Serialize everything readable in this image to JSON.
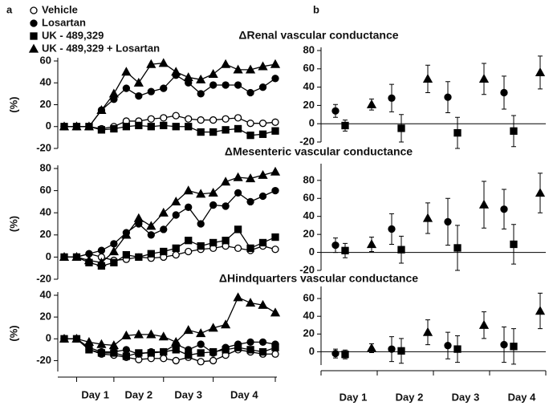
{
  "panel_labels": [
    "a",
    "b"
  ],
  "chart_data": [
    {
      "type": "line",
      "ylabel": "(%)",
      "categories": [
        null,
        null,
        null,
        null,
        null,
        null,
        null,
        null,
        null,
        null,
        null,
        null,
        null,
        null,
        null,
        null,
        null,
        null
      ],
      "ylim": [
        -20,
        60
      ],
      "yticks": [
        -20,
        0,
        20,
        40,
        60
      ],
      "series": [
        {
          "name": "Vehicle",
          "marker": "circle-open",
          "color": "#000",
          "values": [
            0,
            0,
            0,
            -2,
            0,
            5,
            5,
            7,
            8,
            10,
            7,
            6,
            6,
            7,
            8,
            3,
            3,
            4
          ]
        },
        {
          "name": "Losartan",
          "marker": "circle",
          "color": "#000",
          "values": [
            0,
            0,
            0,
            15,
            25,
            35,
            28,
            32,
            35,
            47,
            40,
            30,
            38,
            38,
            38,
            31,
            36,
            44
          ]
        },
        {
          "name": "UK - 489,329",
          "marker": "square",
          "color": "#000",
          "values": [
            0,
            0,
            0,
            -3,
            -2,
            0,
            1,
            0,
            1,
            0,
            0,
            -5,
            -5,
            -3,
            -2,
            -8,
            -7,
            -4
          ]
        },
        {
          "name": "UK - 489,329 + Losartan",
          "marker": "triangle",
          "color": "#000",
          "values": [
            0,
            0,
            0,
            15,
            30,
            50,
            40,
            57,
            58,
            50,
            45,
            43,
            48,
            57,
            52,
            52,
            55,
            57
          ]
        }
      ]
    },
    {
      "type": "line",
      "ylabel": "(%)",
      "categories": [
        null,
        null,
        null,
        null,
        null,
        null,
        null,
        null,
        null,
        null,
        null,
        null,
        null,
        null,
        null,
        null,
        null,
        null
      ],
      "ylim": [
        -20,
        80
      ],
      "yticks": [
        -20,
        0,
        20,
        40,
        60,
        80
      ],
      "series": [
        {
          "marker": "circle-open",
          "color": "#000",
          "values": [
            0,
            0,
            3,
            0,
            -3,
            -2,
            0,
            -1,
            0,
            2,
            5,
            7,
            8,
            10,
            8,
            6,
            10,
            7
          ]
        },
        {
          "marker": "circle",
          "color": "#000",
          "values": [
            0,
            0,
            3,
            6,
            12,
            22,
            30,
            20,
            25,
            38,
            45,
            30,
            47,
            46,
            58,
            50,
            55,
            60
          ]
        },
        {
          "marker": "square",
          "color": "#000",
          "values": [
            0,
            0,
            -5,
            -8,
            -5,
            2,
            0,
            3,
            5,
            8,
            15,
            10,
            13,
            15,
            25,
            8,
            13,
            18
          ]
        },
        {
          "marker": "triangle",
          "color": "#000",
          "values": [
            0,
            0,
            -3,
            -5,
            5,
            20,
            35,
            28,
            40,
            50,
            60,
            57,
            58,
            68,
            72,
            71,
            74,
            77
          ]
        }
      ]
    },
    {
      "type": "line",
      "ylabel": "(%)",
      "categories": [
        null,
        null,
        null,
        null,
        null,
        null,
        null,
        null,
        null,
        null,
        null,
        null,
        null,
        null,
        null,
        null,
        null,
        null
      ],
      "x_group_labels": [
        "Day 1",
        "Day 2",
        "Day 3",
        "Day 4"
      ],
      "ylim": [
        -30,
        40
      ],
      "yticks": [
        -20,
        0,
        20,
        40
      ],
      "series": [
        {
          "marker": "circle-open",
          "color": "#000",
          "values": [
            0,
            0,
            -10,
            -14,
            -15,
            -17,
            -19,
            -18,
            -18,
            -20,
            -17,
            -21,
            -20,
            -15,
            -10,
            -12,
            -14,
            -14
          ]
        },
        {
          "marker": "circle",
          "color": "#000",
          "values": [
            0,
            0,
            -8,
            -12,
            -12,
            -10,
            -14,
            -12,
            -12,
            -5,
            -10,
            -5,
            -13,
            -8,
            -5,
            -3,
            -3,
            -5
          ]
        },
        {
          "marker": "square",
          "color": "#000",
          "values": [
            0,
            0,
            -10,
            -13,
            -13,
            -16,
            -13,
            -13,
            -12,
            -10,
            -15,
            -13,
            -12,
            -10,
            -8,
            -10,
            -12,
            -8
          ]
        },
        {
          "marker": "triangle",
          "color": "#000",
          "values": [
            0,
            0,
            -3,
            -5,
            -6,
            3,
            4,
            4,
            2,
            -3,
            8,
            5,
            10,
            13,
            38,
            33,
            31,
            24
          ]
        }
      ]
    },
    {
      "type": "errorbar",
      "title": "ΔRenal vascular conductance",
      "categories": [
        null,
        null,
        null,
        null
      ],
      "ylim": [
        -20,
        80
      ],
      "yticks": [
        -20,
        0,
        20,
        40,
        60,
        80
      ],
      "series": [
        {
          "marker": "circle",
          "color": "#000",
          "values": [
            14,
            28,
            29,
            34
          ],
          "errors": [
            7,
            15,
            17,
            18
          ]
        },
        {
          "marker": "square",
          "color": "#000",
          "values": [
            -2,
            -5,
            -10,
            -8
          ],
          "errors": [
            6,
            15,
            17,
            17
          ]
        },
        {
          "marker": "triangle",
          "color": "#000",
          "values": [
            21,
            49,
            49,
            56
          ],
          "errors": [
            6,
            15,
            17,
            18
          ]
        }
      ]
    },
    {
      "type": "errorbar",
      "title": "ΔMesenteric vascular conductance",
      "categories": [
        null,
        null,
        null,
        null
      ],
      "ylim": [
        -20,
        95
      ],
      "yticks": [
        -20,
        0,
        20,
        40,
        60,
        80
      ],
      "series": [
        {
          "marker": "circle",
          "color": "#000",
          "values": [
            8,
            26,
            34,
            48
          ],
          "errors": [
            8,
            17,
            26,
            22
          ]
        },
        {
          "marker": "square",
          "color": "#000",
          "values": [
            2,
            3,
            5,
            9
          ],
          "errors": [
            8,
            15,
            25,
            22
          ]
        },
        {
          "marker": "triangle",
          "color": "#000",
          "values": [
            9,
            38,
            53,
            66
          ],
          "errors": [
            8,
            17,
            26,
            22
          ]
        }
      ]
    },
    {
      "type": "errorbar",
      "title": "ΔHindquarters vascular conductance",
      "categories": [
        "Day 1",
        "Day 2",
        "Day 3",
        "Day 4"
      ],
      "ylim": [
        -15,
        70
      ],
      "yticks": [
        0,
        20,
        40,
        60
      ],
      "series": [
        {
          "marker": "circle",
          "color": "#000",
          "values": [
            -2,
            3,
            7,
            8
          ],
          "errors": [
            5,
            14,
            15,
            20
          ]
        },
        {
          "marker": "square",
          "color": "#000",
          "values": [
            -3,
            1,
            3,
            6
          ],
          "errors": [
            5,
            14,
            15,
            20
          ]
        },
        {
          "marker": "triangle",
          "color": "#000",
          "values": [
            4,
            22,
            30,
            46
          ],
          "errors": [
            5,
            14,
            15,
            20
          ]
        }
      ]
    }
  ]
}
